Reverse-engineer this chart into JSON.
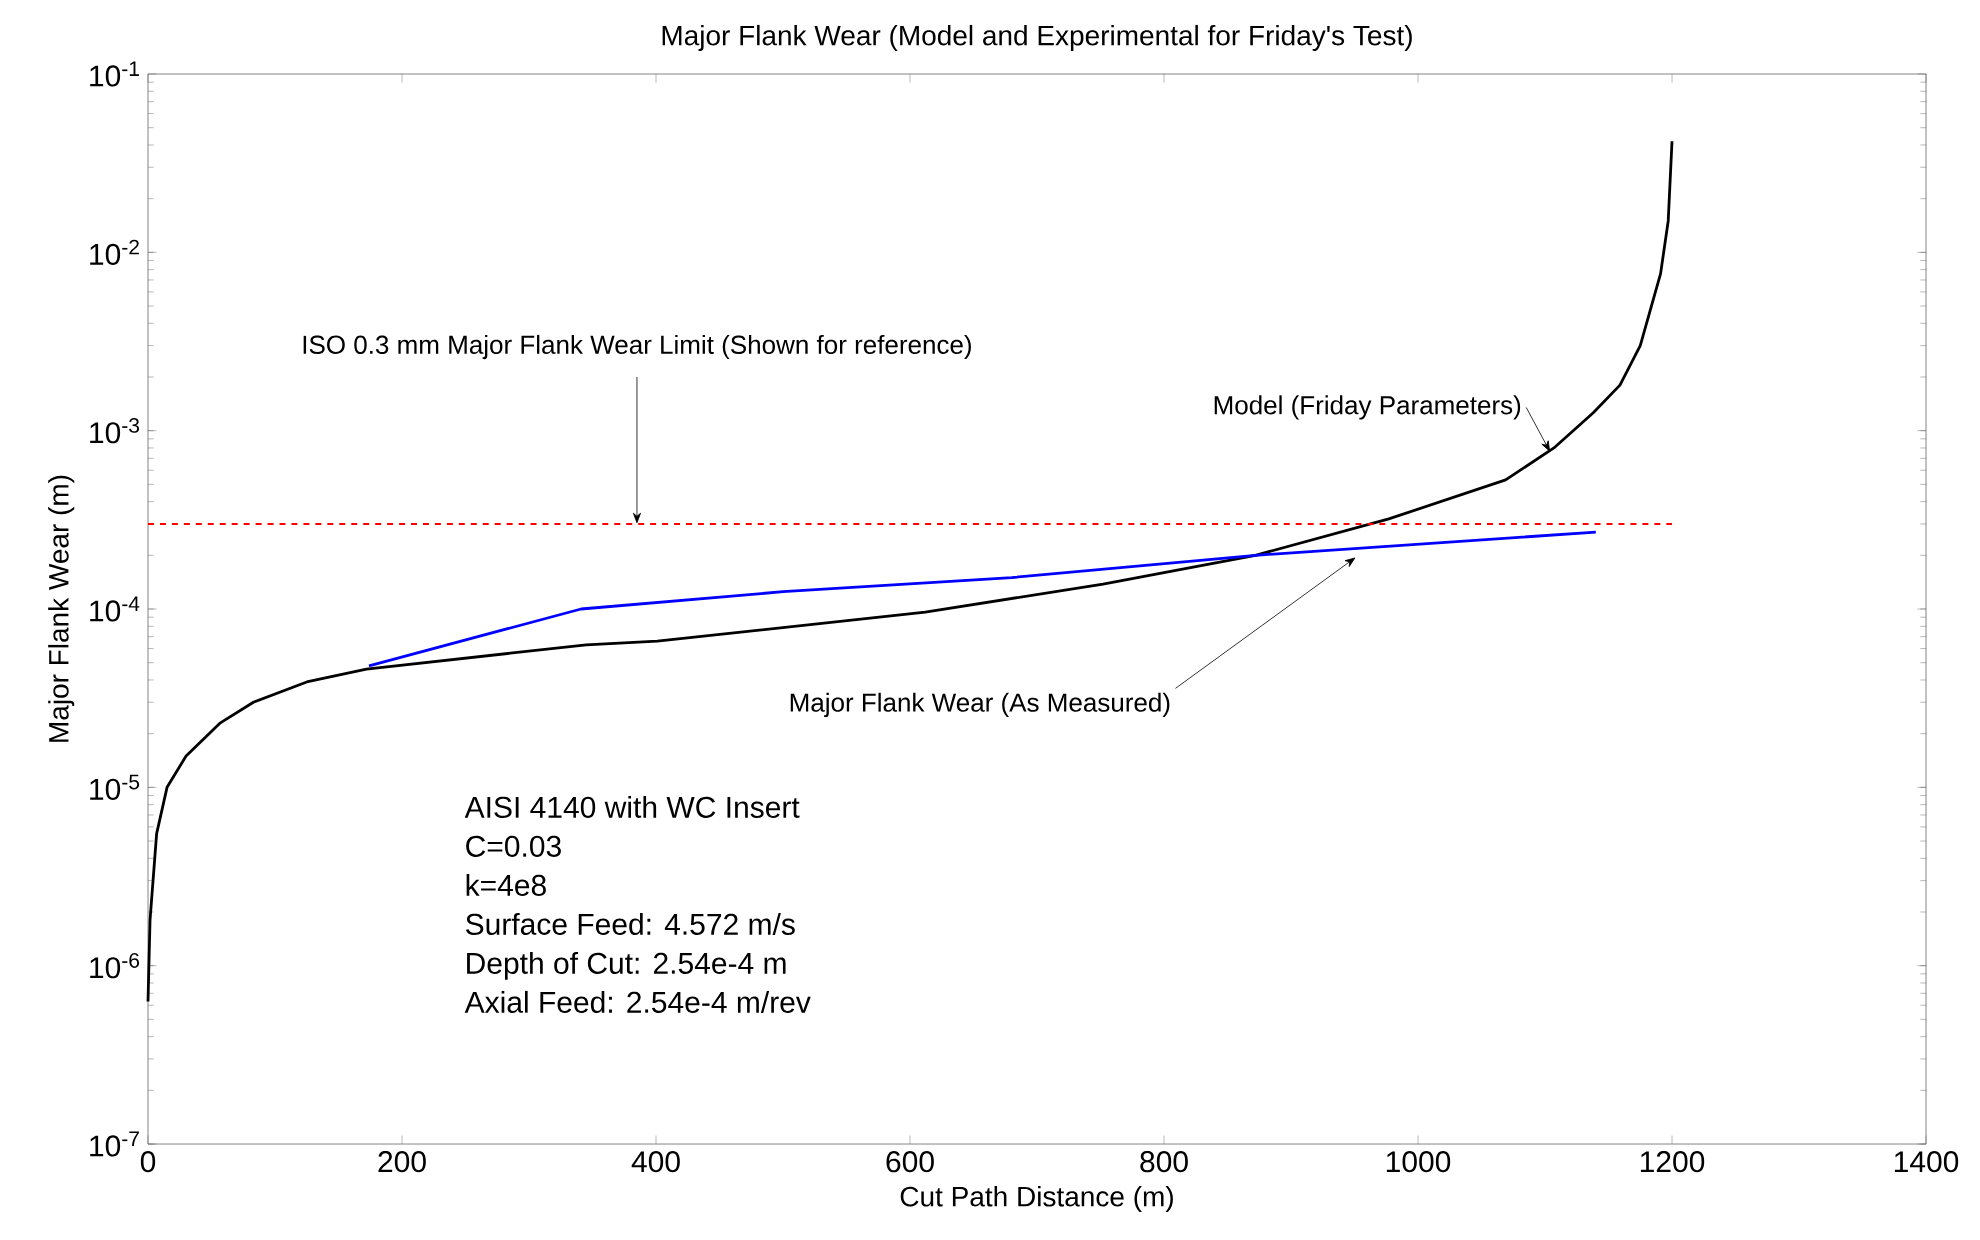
{
  "chart_data": {
    "type": "line",
    "title": "Major Flank Wear (Model and Experimental for Friday's Test)",
    "xlabel": "Cut Path Distance (m)",
    "ylabel": "Major Flank Wear (m)",
    "log": "y",
    "xlim": [
      0,
      1400
    ],
    "ylim": [
      1e-07,
      0.1
    ],
    "xticks": [
      0,
      200,
      400,
      600,
      800,
      1000,
      1200,
      1400
    ],
    "yticks": [
      {
        "value": 1e-07,
        "label": "10$^{-7}$"
      },
      {
        "value": 1e-06,
        "label": "10$^{-6}$"
      },
      {
        "value": 1e-05,
        "label": "10$^{-5}$"
      },
      {
        "value": 0.0001,
        "label": "10$^{-4}$"
      },
      {
        "value": 0.001,
        "label": "10$^{-3}$"
      },
      {
        "value": 0.01,
        "label": "10$^{-2}$"
      },
      {
        "value": 0.1,
        "label": "10$^{-1}$"
      }
    ],
    "series": [
      {
        "name": "Model (Friday Parameters)",
        "color": "#000000",
        "x": [
          0,
          1.6,
          6.8,
          15,
          30,
          57,
          83,
          125,
          172,
          345,
          401,
          612,
          752,
          872,
          977,
          1069,
          1107,
          1138,
          1159,
          1175,
          1191,
          1197,
          1200
        ],
        "values": [
          6.3e-07,
          1.8e-06,
          5.5e-06,
          1e-05,
          1.5e-05,
          2.3e-05,
          3e-05,
          3.9e-05,
          4.6e-05,
          6.3e-05,
          6.6e-05,
          9.6e-05,
          0.000138,
          0.0002,
          0.00032,
          0.00053,
          0.0008,
          0.00126,
          0.0018,
          0.003,
          0.0076,
          0.015,
          0.042
        ]
      },
      {
        "name": "Major Flank Wear (As Measured)",
        "color": "#0000ff",
        "x": [
          174,
          341,
          500,
          680,
          872,
          1140
        ],
        "values": [
          4.8e-05,
          0.0001,
          0.000125,
          0.00015,
          0.0002,
          0.00027
        ]
      }
    ],
    "ref_lines": [
      {
        "axis": "y",
        "value": 0.0003,
        "label": "ISO 0.3 mm Major Flank Wear Limit (Shown for reference)",
        "color": "#ff0000",
        "line_style": "dashed"
      }
    ],
    "annotations": [
      "AISI 4140 with WC Insert",
      "C=0.03",
      "k=4e8",
      "Surface Feed: 4.572 m/s",
      "Depth of Cut: 2.54e-4 m",
      "Axial Feed: 2.54e-4 m/rev"
    ],
    "marker": "none",
    "line_style": "solid"
  }
}
